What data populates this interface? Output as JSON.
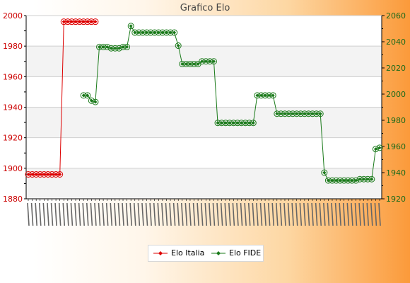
{
  "chart_data": {
    "type": "line",
    "title": "Grafico Elo",
    "y_left": {
      "min": 1880,
      "max": 2000,
      "ticks": [
        "1880",
        "1900",
        "1920",
        "1940",
        "1960",
        "1980",
        "2000"
      ]
    },
    "y_right": {
      "min": 1920,
      "max": 2060,
      "ticks": [
        "1920",
        "1940",
        "1960",
        "1980",
        "2000",
        "2020",
        "2040",
        "2060"
      ]
    },
    "grid": true,
    "legend_position": "bottom",
    "n_points": 90,
    "series": [
      {
        "name": "Elo Italia",
        "axis": "left",
        "color": "#dd0000",
        "x": [
          0,
          1,
          2,
          3,
          4,
          5,
          6,
          7,
          8,
          9,
          10,
          11,
          12,
          13,
          14,
          15,
          16,
          17
        ],
        "values": [
          1896,
          1896,
          1896,
          1896,
          1896,
          1896,
          1896,
          1896,
          1896,
          1996,
          1996,
          1996,
          1996,
          1996,
          1996,
          1996,
          1996,
          1996
        ]
      },
      {
        "name": "Elo FIDE",
        "axis": "right",
        "color": "#1a7a1a",
        "x": [
          14,
          15,
          16,
          17,
          18,
          19,
          20,
          21,
          22,
          23,
          24,
          25,
          26,
          27,
          28,
          29,
          30,
          31,
          32,
          33,
          34,
          35,
          36,
          37,
          38,
          39,
          40,
          41,
          42,
          43,
          44,
          45,
          46,
          47,
          48,
          49,
          50,
          51,
          52,
          53,
          54,
          55,
          56,
          57,
          58,
          59,
          60,
          61,
          62,
          63,
          64,
          65,
          66,
          67,
          68,
          69,
          70,
          71,
          72,
          73,
          74,
          75,
          76,
          77,
          78,
          79,
          80,
          81,
          82,
          83,
          84,
          85,
          86,
          87,
          88,
          89
        ],
        "values": [
          1999,
          1999,
          1995,
          1994,
          2036,
          2036,
          2036,
          2035,
          2035,
          2035,
          2036,
          2036,
          2052,
          2047,
          2047,
          2047,
          2047,
          2047,
          2047,
          2047,
          2047,
          2047,
          2047,
          2047,
          2037,
          2023,
          2023,
          2023,
          2023,
          2023,
          2025,
          2025,
          2025,
          2025,
          1978,
          1978,
          1978,
          1978,
          1978,
          1978,
          1978,
          1978,
          1978,
          1978,
          1999,
          1999,
          1999,
          1999,
          1999,
          1985,
          1985,
          1985,
          1985,
          1985,
          1985,
          1985,
          1985,
          1985,
          1985,
          1985,
          1985,
          1940,
          1934,
          1934,
          1934,
          1934,
          1934,
          1934,
          1934,
          1934,
          1935,
          1935,
          1935,
          1935,
          1958,
          1959
        ]
      }
    ]
  },
  "legend": {
    "italia": "Elo Italia",
    "fide": "Elo FIDE"
  }
}
